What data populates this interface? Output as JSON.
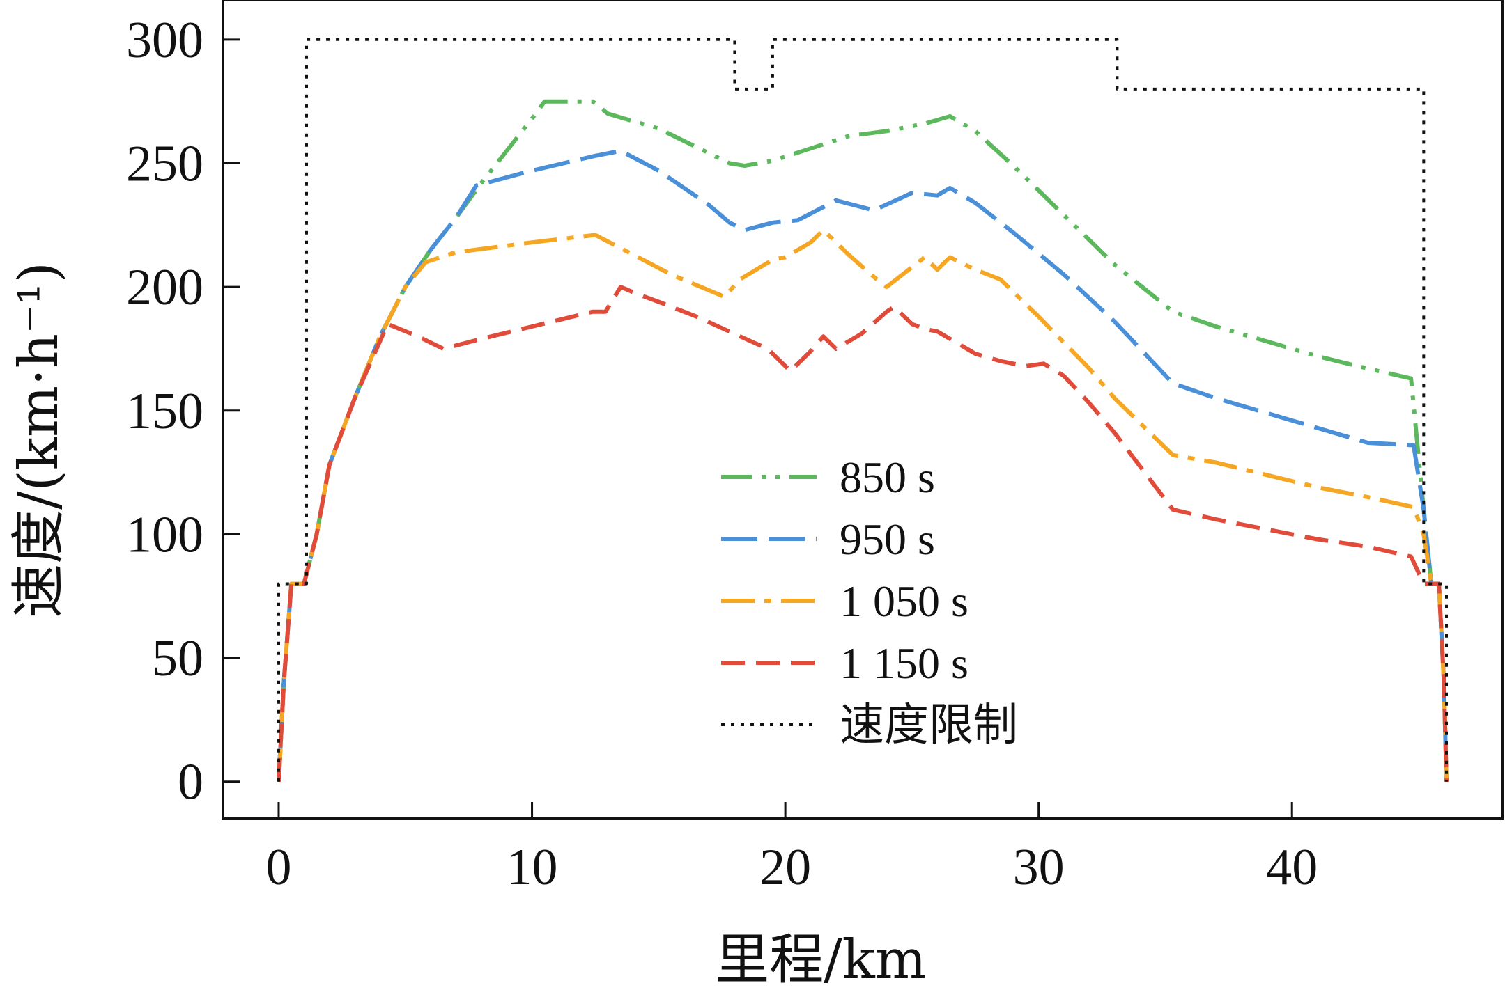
{
  "chart_data": {
    "type": "line",
    "xlabel": "里程/km",
    "ylabel": "速度/(km·h⁻¹)",
    "xlim": [
      -2.2,
      48.3
    ],
    "ylim": [
      -15,
      316
    ],
    "xticks": [
      0,
      10,
      20,
      30,
      40
    ],
    "yticks": [
      0,
      50,
      100,
      150,
      200,
      250,
      300
    ],
    "xtick_labels": [
      "0",
      "10",
      "20",
      "30",
      "40"
    ],
    "ytick_labels": [
      "0",
      "50",
      "100",
      "150",
      "200",
      "250",
      "300"
    ],
    "legend_position": "center",
    "series": [
      {
        "name": "850 s",
        "color": "#5cb85c",
        "dash": "dashdotdot",
        "x": [
          0,
          0.2,
          0.5,
          1.0,
          1.5,
          2,
          3,
          4,
          5,
          6,
          7,
          8,
          9,
          10,
          10.5,
          12.4,
          13,
          15,
          17.8,
          18.4,
          19.5,
          21,
          22.5,
          24,
          25.5,
          26.5,
          27.5,
          29,
          31,
          33,
          35.3,
          37,
          39,
          41,
          43,
          44.7,
          45.2,
          45.5,
          45.8,
          46,
          46.1
        ],
        "y": [
          0,
          40,
          80,
          80,
          100,
          128,
          155,
          180,
          200,
          215,
          228,
          242,
          255,
          268,
          275,
          275,
          270,
          264,
          250,
          249,
          251,
          256,
          261,
          263,
          266,
          269,
          263,
          249,
          229,
          209,
          190,
          184,
          178,
          172,
          167,
          163,
          110,
          80,
          80,
          40,
          0
        ]
      },
      {
        "name": "950 s",
        "color": "#4a90d9",
        "dash": "longdash",
        "x": [
          0,
          0.2,
          0.5,
          1.0,
          1.5,
          2,
          3,
          4,
          5,
          6,
          7,
          7.8,
          10,
          12.5,
          13.5,
          15,
          17,
          17.8,
          18.4,
          19.5,
          20.5,
          22,
          23.5,
          25,
          26,
          26.5,
          27.5,
          29,
          31,
          33,
          35.3,
          37,
          39,
          41,
          43,
          44.8,
          45.2,
          45.5,
          45.8,
          46,
          46.1
        ],
        "y": [
          0,
          40,
          80,
          80,
          100,
          128,
          155,
          180,
          200,
          215,
          228,
          241,
          247,
          253,
          255,
          247,
          233,
          226,
          223,
          226,
          227,
          235,
          231,
          238,
          237,
          240,
          234,
          222,
          205,
          186,
          161,
          155,
          149,
          143,
          137,
          136,
          110,
          80,
          80,
          40,
          0
        ]
      },
      {
        "name": "1 050 s",
        "color": "#f5a623",
        "dash": "dashdot",
        "x": [
          0,
          0.2,
          0.5,
          1.0,
          1.5,
          2,
          3,
          4,
          5,
          5.8,
          7,
          10,
          12.5,
          14,
          15.5,
          17.6,
          18.2,
          19.5,
          20,
          21,
          21.5,
          22.5,
          23.5,
          24,
          25,
          25.5,
          26,
          26.5,
          27.5,
          28.5,
          30,
          32,
          33,
          35.3,
          37,
          39,
          41,
          43,
          44.8,
          45.2,
          45.5,
          45.8,
          46,
          46.1
        ],
        "y": [
          0,
          40,
          80,
          80,
          100,
          128,
          155,
          180,
          200,
          210,
          214,
          218,
          221,
          213,
          205,
          196,
          203,
          211,
          212,
          218,
          223,
          213,
          204,
          200,
          208,
          212,
          207,
          212,
          207,
          203,
          188,
          167,
          155,
          132,
          129,
          124,
          119,
          115,
          111,
          100,
          80,
          80,
          40,
          0
        ]
      },
      {
        "name": "1 150 s",
        "color": "#e04b3a",
        "dash": "dash",
        "x": [
          0,
          0.2,
          0.5,
          1.0,
          1.5,
          2,
          3,
          4.3,
          5.5,
          6.5,
          8,
          10,
          12.4,
          12.9,
          13.5,
          14.2,
          15,
          16.5,
          18,
          19.3,
          20.2,
          21,
          21.5,
          22,
          23,
          24,
          24.3,
          25,
          25.5,
          26,
          26.5,
          27.5,
          28.5,
          29.5,
          30.2,
          31,
          32,
          33,
          35.3,
          37,
          39,
          41,
          43,
          44.7,
          45.2,
          45.5,
          45.8,
          46,
          46.1
        ],
        "y": [
          0,
          40,
          80,
          80,
          100,
          128,
          155,
          185,
          180,
          175,
          179,
          184,
          190,
          190,
          200,
          197,
          194,
          188,
          181,
          175,
          166,
          174,
          180,
          175,
          181,
          190,
          192,
          185,
          183,
          182,
          179,
          173,
          170,
          168,
          169,
          164,
          153,
          141,
          110,
          106,
          102,
          98,
          95,
          91,
          80,
          80,
          80,
          40,
          0
        ]
      },
      {
        "name": "速度限制",
        "color": "#111111",
        "dash": "dot",
        "x": [
          0,
          0,
          1.1,
          1.1,
          18.0,
          18.0,
          19.5,
          19.5,
          33.1,
          33.1,
          45.2,
          45.2,
          46.1,
          46.1
        ],
        "y": [
          0,
          80,
          80,
          300,
          300,
          280,
          280,
          300,
          300,
          280,
          280,
          80,
          80,
          0
        ]
      }
    ]
  }
}
